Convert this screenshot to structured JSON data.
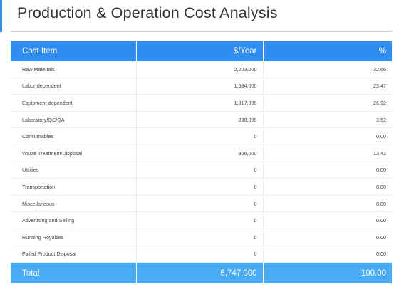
{
  "title": "Production & Operation Cost Analysis",
  "colors": {
    "header_blue": "#2f8df0",
    "total_blue": "#4aabf2",
    "accent_blue": "#2f8df0"
  },
  "table": {
    "headers": [
      "Cost Item",
      "$/Year",
      "%"
    ],
    "rows": [
      {
        "item": "Raw Materials",
        "per_year": "2,203,000",
        "percent": "32.66"
      },
      {
        "item": "Labor-dependent",
        "per_year": "1,584,000",
        "percent": "23.47"
      },
      {
        "item": "Equipment-dependent",
        "per_year": "1,817,000",
        "percent": "26.92"
      },
      {
        "item": "Laboratory/QC/QA",
        "per_year": "238,000",
        "percent": "3.52"
      },
      {
        "item": "Consumables",
        "per_year": "0",
        "percent": "0.00"
      },
      {
        "item": "Waste Treatment/Disposal",
        "per_year": "906,000",
        "percent": "13.42"
      },
      {
        "item": "Utilities",
        "per_year": "0",
        "percent": "0.00"
      },
      {
        "item": "Transportation",
        "per_year": "0",
        "percent": "0.00"
      },
      {
        "item": "Miscellaneous",
        "per_year": "0",
        "percent": "0.00"
      },
      {
        "item": "Advertising and Selling",
        "per_year": "0",
        "percent": "0.00"
      },
      {
        "item": "Running Royalties",
        "per_year": "0",
        "percent": "0.00"
      },
      {
        "item": "Failed Product Disposal",
        "per_year": "0",
        "percent": "0.00"
      }
    ],
    "total": {
      "label": "Total",
      "per_year": "6,747,000",
      "percent": "100.00"
    }
  }
}
